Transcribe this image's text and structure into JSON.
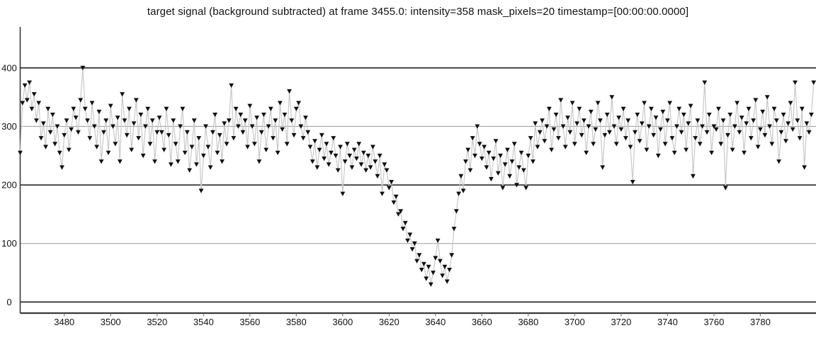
{
  "chart_data": {
    "type": "line",
    "title": "target signal (background subtracted) at frame 3455.0: intensity=358 mask_pixels=20 timestamp=[00:00:00.0000]",
    "marker": "triangle-down",
    "marker_color": "#0f0f0f",
    "line_color": "#c9c9c9",
    "axis_color": "#3a3a3a",
    "major_grid_color": "#3a3a3a",
    "minor_grid_color": "#9a9a9a",
    "tick_color": "#666666",
    "label_color": "#111111",
    "xlabel": "",
    "ylabel": "",
    "xlim": [
      3461,
      3804
    ],
    "ylim": [
      -19,
      470
    ],
    "xticks": [
      3480,
      3500,
      3520,
      3540,
      3560,
      3580,
      3600,
      3620,
      3640,
      3660,
      3680,
      3700,
      3720,
      3740,
      3760,
      3780
    ],
    "yticks": [
      0,
      100,
      200,
      300,
      400
    ],
    "major_gridlines": [
      0,
      200,
      400
    ],
    "minor_gridlines": [
      100,
      300
    ],
    "legend": "none",
    "x_start": 3461,
    "x_step": 1,
    "values": [
      255,
      340,
      370,
      345,
      375,
      330,
      355,
      310,
      340,
      280,
      305,
      265,
      330,
      290,
      320,
      270,
      300,
      255,
      230,
      285,
      310,
      260,
      295,
      330,
      315,
      290,
      345,
      400,
      330,
      310,
      280,
      340,
      300,
      265,
      325,
      240,
      290,
      310,
      255,
      335,
      300,
      270,
      315,
      240,
      355,
      310,
      285,
      330,
      260,
      305,
      345,
      280,
      320,
      250,
      300,
      330,
      270,
      310,
      240,
      290,
      315,
      290,
      260,
      330,
      285,
      235,
      310,
      270,
      240,
      300,
      330,
      255,
      290,
      225,
      265,
      310,
      235,
      280,
      190,
      250,
      300,
      265,
      230,
      290,
      320,
      255,
      285,
      240,
      305,
      270,
      310,
      370,
      280,
      330,
      300,
      320,
      290,
      310,
      265,
      335,
      300,
      270,
      315,
      240,
      290,
      320,
      260,
      300,
      330,
      280,
      310,
      255,
      340,
      295,
      320,
      270,
      360,
      310,
      285,
      330,
      340,
      300,
      280,
      315,
      290,
      265,
      240,
      275,
      230,
      260,
      285,
      245,
      270,
      235,
      255,
      280,
      250,
      225,
      265,
      185,
      240,
      270,
      250,
      230,
      260,
      245,
      270,
      235,
      255,
      225,
      250,
      230,
      265,
      240,
      215,
      250,
      185,
      235,
      225,
      195,
      205,
      170,
      180,
      150,
      155,
      125,
      135,
      105,
      115,
      90,
      100,
      70,
      80,
      55,
      65,
      40,
      60,
      30,
      50,
      75,
      105,
      70,
      45,
      60,
      35,
      55,
      80,
      125,
      155,
      185,
      215,
      190,
      240,
      260,
      225,
      280,
      250,
      300,
      270,
      245,
      265,
      230,
      255,
      210,
      245,
      275,
      220,
      250,
      195,
      235,
      260,
      215,
      240,
      270,
      200,
      230,
      255,
      225,
      195,
      250,
      280,
      240,
      305,
      265,
      290,
      310,
      275,
      300,
      330,
      260,
      295,
      320,
      280,
      345,
      300,
      265,
      315,
      290,
      340,
      270,
      305,
      330,
      285,
      310,
      255,
      300,
      325,
      270,
      295,
      340,
      310,
      230,
      285,
      320,
      290,
      350,
      300,
      270,
      315,
      295,
      330,
      280,
      310,
      265,
      205,
      290,
      320,
      275,
      305,
      340,
      260,
      300,
      330,
      285,
      315,
      250,
      295,
      325,
      270,
      310,
      340,
      280,
      255,
      300,
      330,
      290,
      320,
      260,
      305,
      335,
      215,
      280,
      310,
      270,
      300,
      375,
      290,
      320,
      255,
      300,
      295,
      330,
      270,
      310,
      195,
      285,
      320,
      260,
      300,
      340,
      290,
      315,
      255,
      305,
      330,
      280,
      310,
      345,
      265,
      295,
      325,
      285,
      350,
      300,
      270,
      330,
      310,
      240,
      290,
      320,
      275,
      305,
      340,
      295,
      375,
      310,
      280,
      330,
      230,
      305,
      290,
      320,
      375
    ]
  }
}
